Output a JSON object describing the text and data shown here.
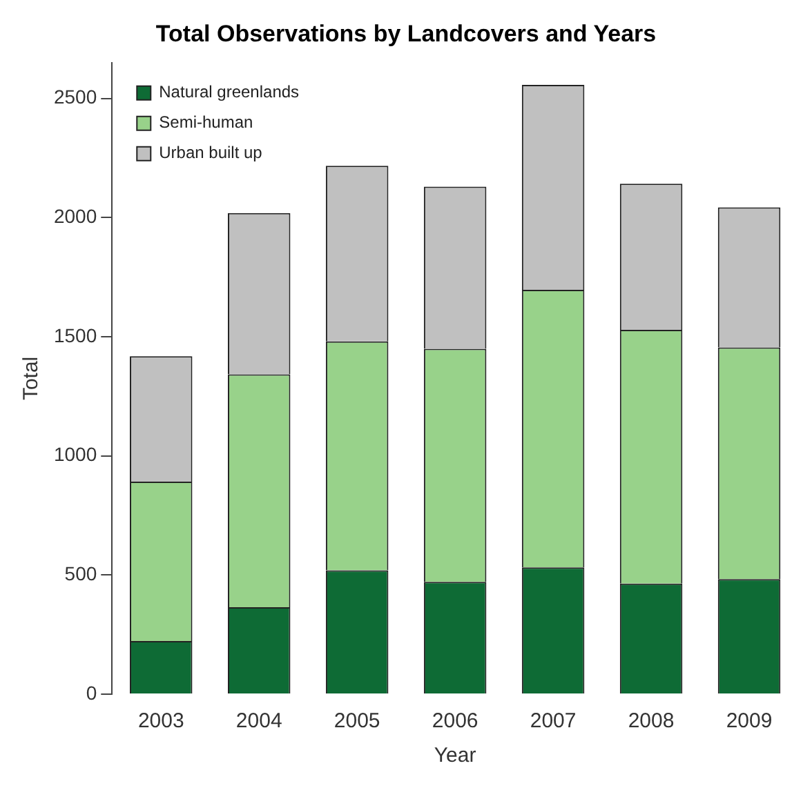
{
  "chart_data": {
    "type": "bar",
    "title": "Total Observations by Landcovers and Years",
    "xlabel": "Year",
    "ylabel": "Total",
    "categories": [
      "2003",
      "2004",
      "2005",
      "2006",
      "2007",
      "2008",
      "2009"
    ],
    "stacked": true,
    "legend": "top left",
    "grid": false,
    "ylim": [
      0,
      2650
    ],
    "yticks": [
      0,
      500,
      1000,
      1500,
      2000,
      2500
    ],
    "series": [
      {
        "name": "Natural greenlands",
        "color": "#0e6b35",
        "values": [
          223,
          365,
          520,
          471,
          532,
          464,
          483
        ]
      },
      {
        "name": "Semi-human",
        "color": "#98d28a",
        "values": [
          669,
          977,
          960,
          978,
          1165,
          1065,
          972
        ]
      },
      {
        "name": "Urban built up",
        "color": "#c0c0c0",
        "values": [
          526,
          677,
          737,
          681,
          860,
          613,
          588
        ]
      }
    ]
  }
}
